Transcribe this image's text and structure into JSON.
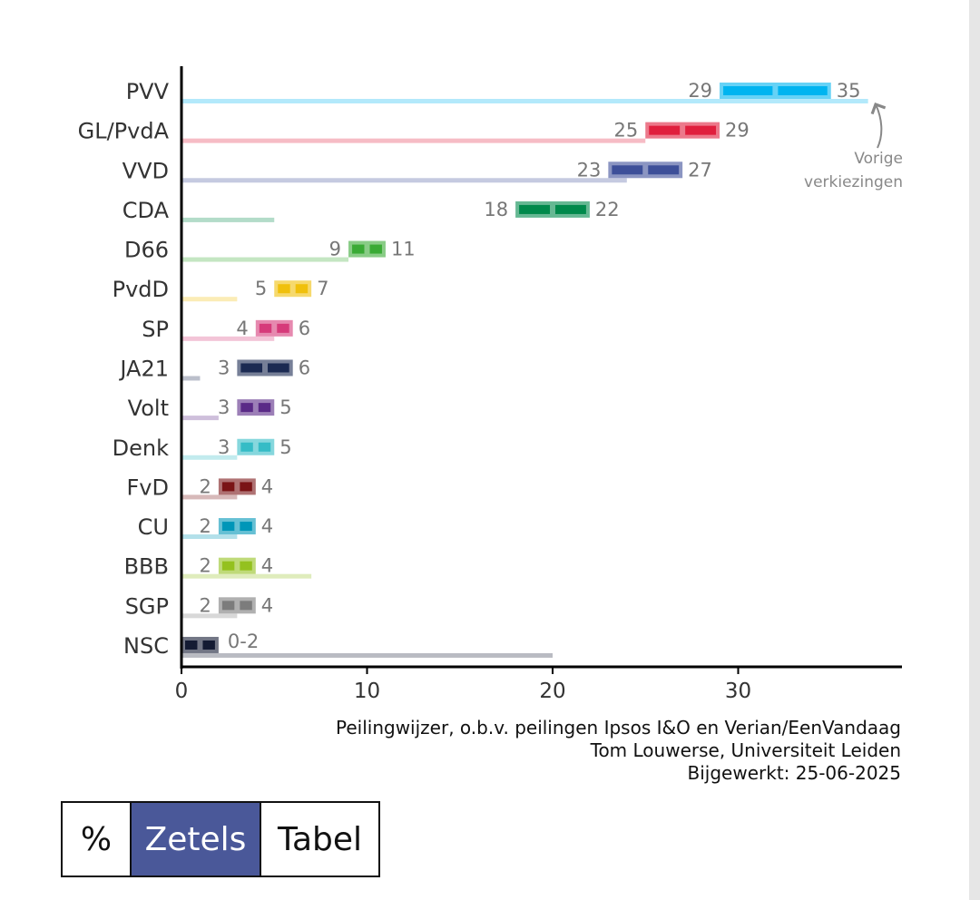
{
  "chart_data": {
    "type": "bar",
    "x_ticks": [
      0,
      10,
      20,
      30
    ],
    "xlim": [
      0,
      38.5
    ],
    "annotation": {
      "line1": "Vorige",
      "line2": "verkiezingen"
    },
    "parties": [
      {
        "name": "PVV",
        "low": 29,
        "high": 35,
        "low_label": "29",
        "high_label": "35",
        "previous": 37,
        "color": "#00b4f0"
      },
      {
        "name": "GL/PvdA",
        "low": 25,
        "high": 29,
        "low_label": "25",
        "high_label": "29",
        "previous": 25,
        "color": "#e01f3d"
      },
      {
        "name": "VVD",
        "low": 23,
        "high": 27,
        "low_label": "23",
        "high_label": "27",
        "previous": 24,
        "color": "#3d4f99"
      },
      {
        "name": "CDA",
        "low": 18,
        "high": 22,
        "low_label": "18",
        "high_label": "22",
        "previous": 5,
        "color": "#00894b"
      },
      {
        "name": "D66",
        "low": 9,
        "high": 11,
        "low_label": "9",
        "high_label": "11",
        "previous": 9,
        "color": "#3aaa35"
      },
      {
        "name": "PvdD",
        "low": 5,
        "high": 7,
        "low_label": "5",
        "high_label": "7",
        "previous": 3,
        "color": "#f0c00c"
      },
      {
        "name": "SP",
        "low": 4,
        "high": 6,
        "low_label": "4",
        "high_label": "6",
        "previous": 5,
        "color": "#d63a7a"
      },
      {
        "name": "JA21",
        "low": 3,
        "high": 6,
        "low_label": "3",
        "high_label": "6",
        "previous": 1,
        "color": "#1b2a52"
      },
      {
        "name": "Volt",
        "low": 3,
        "high": 5,
        "low_label": "3",
        "high_label": "5",
        "previous": 2,
        "color": "#5a2a87"
      },
      {
        "name": "Denk",
        "low": 3,
        "high": 5,
        "low_label": "3",
        "high_label": "5",
        "previous": 3,
        "color": "#35bcc6"
      },
      {
        "name": "FvD",
        "low": 2,
        "high": 4,
        "low_label": "2",
        "high_label": "4",
        "previous": 3,
        "color": "#7a1416"
      },
      {
        "name": "CU",
        "low": 2,
        "high": 4,
        "low_label": "2",
        "high_label": "4",
        "previous": 3,
        "color": "#0096b8"
      },
      {
        "name": "BBB",
        "low": 2,
        "high": 4,
        "low_label": "2",
        "high_label": "4",
        "previous": 7,
        "color": "#94c11f"
      },
      {
        "name": "SGP",
        "low": 2,
        "high": 4,
        "low_label": "2",
        "high_label": "4",
        "previous": 3,
        "color": "#7c7c7c"
      },
      {
        "name": "NSC",
        "low": 0,
        "high": 2,
        "low_label": "",
        "high_label": "0-2",
        "previous": 20,
        "color": "#141b33"
      }
    ]
  },
  "source": {
    "line1": "Peilingwijzer, o.b.v. peilingen Ipsos I&O en Verian/EenVandaag",
    "line2": "Tom Louwerse, Universiteit Leiden",
    "line3": "Bijgewerkt: 25-06-2025"
  },
  "toggle": {
    "percent_label": "%",
    "seats_label": "Zetels",
    "table_label": "Tabel",
    "active": "seats"
  }
}
